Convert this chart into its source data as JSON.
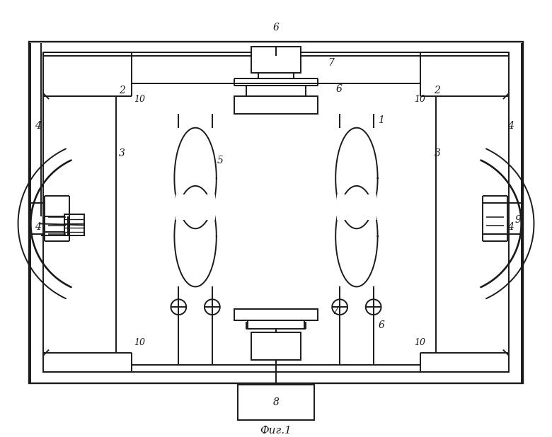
{
  "bg_color": "#ffffff",
  "lc": "#1a1a1a",
  "lw": 1.4,
  "title": "Фиг.1"
}
